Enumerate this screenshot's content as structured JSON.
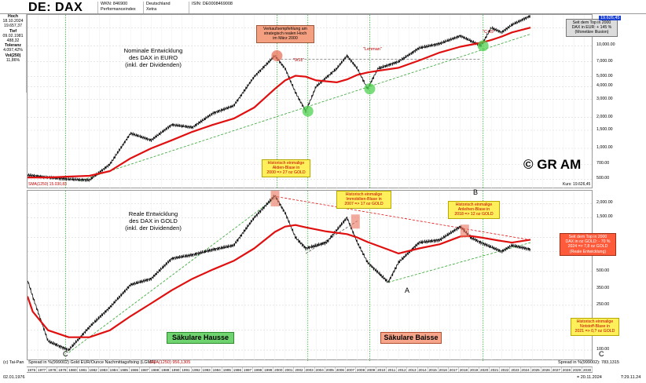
{
  "header": {
    "title": "DE: DAX",
    "cells": [
      [
        "WKN: 846900",
        "Performanceindex"
      ],
      [
        "Deutschland",
        "Xetra"
      ],
      [
        "ISIN: DE0008469008",
        ""
      ]
    ]
  },
  "sidebar": [
    {
      "label": "Hoch",
      "value": "18.10.2024"
    },
    {
      "label": "",
      "value": "19.657,37"
    },
    {
      "label": "Tief",
      "value": "09.02.1981"
    },
    {
      "label": "",
      "value": "488,32"
    },
    {
      "label": "Toleranz",
      "value": "4.097,42%"
    },
    {
      "label": "Vol(250)",
      "value": "11,86%"
    }
  ],
  "top_panel": {
    "label_lines": [
      "Nominale Entwicklung",
      "des DAX in EURO",
      "(inkl. der Dividenden)"
    ],
    "note_peak": "Verkaufsempfehlung am strategisch realen Hoch im März 2000",
    "note_peak_lines": [
      "Verkaufsempfehlung am",
      "strategisch realen Hoch",
      "im März 2000"
    ],
    "note_bubble_lines": [
      "Historisch einmalige",
      "Aktien-Blase in",
      "2000 => 27 oz GOLD"
    ],
    "note_top_lines": [
      "Seit dem Top in 2000",
      "DAX in EUR: + 145 %",
      "(Monetäre Illusion)"
    ],
    "label_911": "\"9/11\"",
    "label_lehman": "\"Lehman\"",
    "label_c19": "\"C-19\"",
    "copyright": "© GR AM",
    "sma_label": "SMA(1250) 15.030,83",
    "kurs_label": "Kurs: 19.626,45",
    "last_value": "19.626,45",
    "right_axis": [
      "15,000.00",
      "10,000.00",
      "7,000.00",
      "5,000.00",
      "4,000.00",
      "3,000.00",
      "2,000.00",
      "1,500.00",
      "1,000.00",
      "700.00",
      "500.00"
    ]
  },
  "bottom_panel": {
    "label_lines": [
      "Reale Entwicklung",
      "des DAX in GOLD",
      "(inkl. der Dividenden)"
    ],
    "note_2007_lines": [
      "Historisch einmalige",
      "Immobilien-Blase in",
      "2007 => 17 oz GOLD"
    ],
    "note_2018_lines": [
      "Historisch einmalige",
      "Anleihen-Blase in",
      "2018 => 12 oz GOLD"
    ],
    "note_top_lines": [
      "Seit dem Top in 2000",
      "DAX in oz GOLD: - 70 %",
      "2024 => 7,8 oz GOLD",
      "(Reale Entwicklung)"
    ],
    "note_2021_lines": [
      "Historisch einmalige",
      "Notstoff-Blase in",
      "2021 => 0,? oz GOLD"
    ],
    "hausse": "Säkulare Hausse",
    "baisse": "Säkulare Baisse",
    "letter_a": "A",
    "letter_b": "B",
    "letter_c_left": "C",
    "letter_c_right": "C",
    "right_axis": [
      "2,000.00",
      "1,500.00",
      "1,000.00",
      "750.00",
      "500.00",
      "350.00",
      "250.00",
      "150.00",
      "100.00"
    ],
    "sma_label": "SMA(1250) 956,1305"
  },
  "footer": {
    "left": "(c) Tai-Pan",
    "spread_left": "Spread in %(999002) Gold EUR/Ounce Nachmittagsfixing (LGMF)",
    "spread_right": "Spread in %(999002): 783,1315",
    "date_left": "02.01.1976",
    "date_right": "= 20.11.2024",
    "time": "T:29.11.24",
    "years": [
      "1976",
      "1977",
      "1978",
      "1979",
      "1980",
      "1981",
      "1982",
      "1983",
      "1984",
      "1985",
      "1986",
      "1987",
      "1988",
      "1989",
      "1990",
      "1991",
      "1992",
      "1993",
      "1994",
      "1995",
      "1996",
      "1997",
      "1998",
      "1999",
      "2000",
      "2001",
      "2002",
      "2003",
      "2004",
      "2005",
      "2006",
      "2007",
      "2008",
      "2009",
      "2010",
      "2011",
      "2012",
      "2013",
      "2014",
      "2015",
      "2016",
      "2017",
      "2018",
      "2019",
      "2020",
      "2021",
      "2022",
      "2023",
      "2024",
      "2025",
      "2026",
      "2027",
      "2028",
      "2029",
      "2030"
    ]
  },
  "chart_data": [
    {
      "type": "line",
      "title": "DE: DAX",
      "scale": "log",
      "ylim": [
        400,
        20000
      ],
      "x": [
        1976,
        1978,
        1980,
        1982,
        1984,
        1986,
        1988,
        1990,
        1992,
        1994,
        1996,
        1998,
        2000,
        2001,
        2002,
        2003,
        2004,
        2006,
        2007,
        2008,
        2009,
        2010,
        2012,
        2014,
        2016,
        2018,
        2020,
        2021,
        2022,
        2023,
        2024.8
      ],
      "series": [
        {
          "name": "",
          "values": [
            550,
            520,
            500,
            490,
            700,
            1400,
            1200,
            1700,
            1600,
            2200,
            2600,
            5000,
            8000,
            6000,
            3500,
            2300,
            4000,
            6000,
            8000,
            6000,
            3800,
            6000,
            7000,
            9500,
            10500,
            12500,
            10000,
            15000,
            13500,
            16000,
            19626
          ]
        },
        {
          "name": "SMA(1250)",
          "values": [
            520,
            520,
            530,
            540,
            600,
            800,
            1000,
            1200,
            1450,
            1700,
            1950,
            2500,
            3800,
            4600,
            5100,
            5000,
            4600,
            4400,
            4700,
            5200,
            5500,
            5700,
            6100,
            7200,
            8600,
            9800,
            10700,
            11400,
            12300,
            13500,
            15031
          ]
        }
      ]
    },
    {
      "type": "line",
      "title": "",
      "scale": "log",
      "ylim": [
        80,
        2600
      ],
      "x": [
        1976,
        1976.5,
        1978,
        1980,
        1982,
        1984,
        1986,
        1988,
        1990,
        1992,
        1994,
        1996,
        1998,
        2000,
        2001,
        2002,
        2003,
        2005,
        2007,
        2008,
        2009,
        2011,
        2012,
        2014,
        2016,
        2018,
        2019,
        2020,
        2022,
        2023,
        2024.8
      ],
      "series": [
        {
          "name": "",
          "values": [
            420,
            300,
            120,
            100,
            160,
            240,
            380,
            430,
            650,
            700,
            780,
            850,
            1500,
            2350,
            1650,
            1000,
            800,
            900,
            1500,
            900,
            600,
            400,
            600,
            900,
            950,
            1250,
            1000,
            900,
            750,
            850,
            783
          ]
        },
        {
          "name": "SMA(1250)",
          "values": [
            300,
            220,
            150,
            130,
            130,
            150,
            200,
            260,
            340,
            430,
            520,
            620,
            800,
            1120,
            1250,
            1290,
            1230,
            1130,
            1070,
            1000,
            910,
            780,
            720,
            800,
            870,
            1020,
            1030,
            1000,
            930,
            900,
            956
          ]
        }
      ]
    }
  ]
}
